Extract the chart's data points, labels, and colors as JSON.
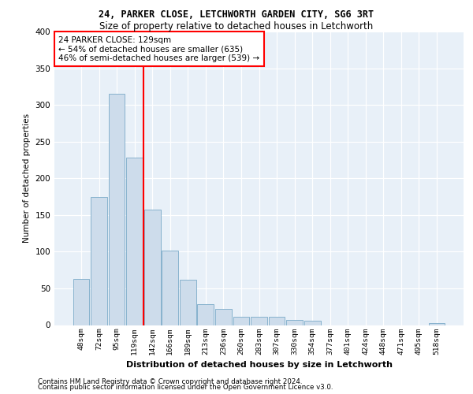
{
  "title1": "24, PARKER CLOSE, LETCHWORTH GARDEN CITY, SG6 3RT",
  "title2": "Size of property relative to detached houses in Letchworth",
  "xlabel": "Distribution of detached houses by size in Letchworth",
  "ylabel": "Number of detached properties",
  "categories": [
    "48sqm",
    "72sqm",
    "95sqm",
    "119sqm",
    "142sqm",
    "166sqm",
    "189sqm",
    "213sqm",
    "236sqm",
    "260sqm",
    "283sqm",
    "307sqm",
    "330sqm",
    "354sqm",
    "377sqm",
    "401sqm",
    "424sqm",
    "448sqm",
    "471sqm",
    "495sqm",
    "518sqm"
  ],
  "values": [
    63,
    175,
    315,
    228,
    157,
    102,
    62,
    28,
    22,
    11,
    11,
    11,
    7,
    6,
    0,
    0,
    0,
    0,
    0,
    0,
    3
  ],
  "bar_color": "#cddceb",
  "bar_edge_color": "#7aaac8",
  "vline_x_idx": 3.5,
  "vline_color": "red",
  "annotation_text": "24 PARKER CLOSE: 129sqm\n← 54% of detached houses are smaller (635)\n46% of semi-detached houses are larger (539) →",
  "annotation_box_color": "white",
  "annotation_box_edge": "red",
  "ylim": [
    0,
    400
  ],
  "yticks": [
    0,
    50,
    100,
    150,
    200,
    250,
    300,
    350,
    400
  ],
  "background_color": "#e8f0f8",
  "footer_line1": "Contains HM Land Registry data © Crown copyright and database right 2024.",
  "footer_line2": "Contains public sector information licensed under the Open Government Licence v3.0."
}
